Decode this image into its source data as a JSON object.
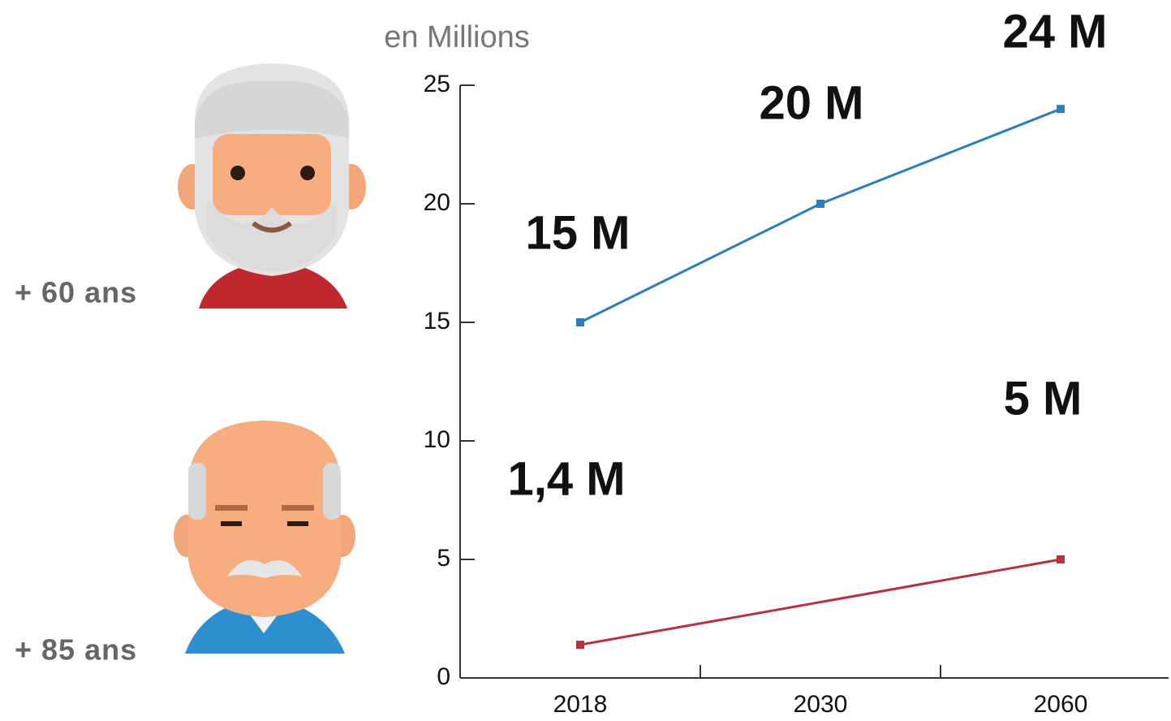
{
  "chart_data": {
    "type": "line",
    "y_axis_label": "en Millions",
    "categories": [
      "2018",
      "2030",
      "2060"
    ],
    "series": [
      {
        "name": "+ 60 ans",
        "color": "#2e7fb8",
        "values": [
          15,
          20,
          24
        ],
        "value_labels": [
          "15 M",
          "20 M",
          "24 M"
        ]
      },
      {
        "name": "+ 85 ans",
        "color": "#b5323e",
        "values": [
          1.4,
          3.2,
          5
        ],
        "value_labels": [
          "1,4 M",
          null,
          "5 M"
        ]
      }
    ],
    "ylim": [
      0,
      25
    ],
    "yticks": [
      0,
      5,
      10,
      15,
      20,
      25
    ]
  }
}
